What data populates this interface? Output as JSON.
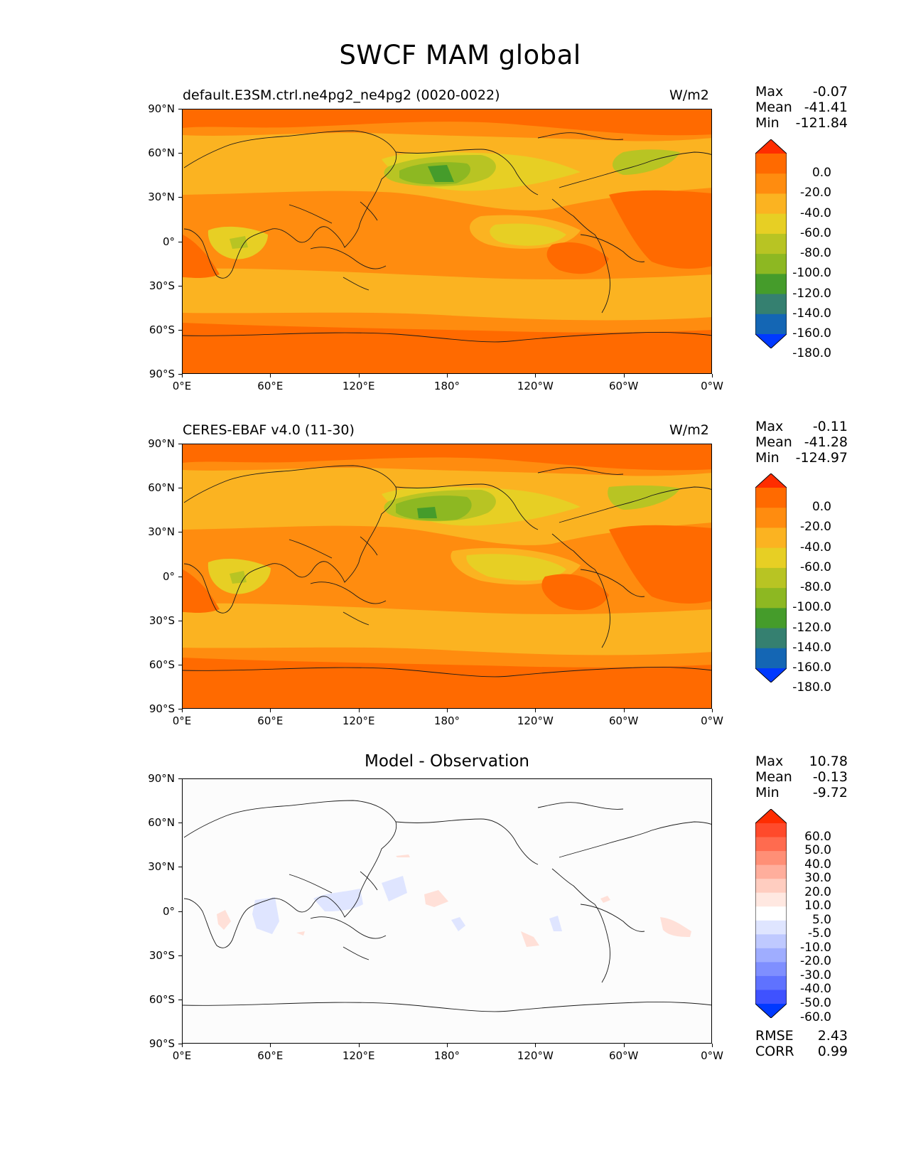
{
  "title": "SWCF MAM global",
  "colors": {
    "orange_dark": "#ff6a00",
    "orange": "#ff8c0f",
    "orange_light": "#fbb321",
    "yellow": "#e7cf24",
    "yellow_green": "#b8c423",
    "green_light": "#8db822",
    "green": "#459c2b",
    "teal": "#358070",
    "blue_mid": "#1466b4",
    "blue": "#0039ff",
    "red": "#ff2d00"
  },
  "panels": [
    {
      "label": "default.E3SM.ctrl.ne4pg2_ne4pg2 (0020-0022)",
      "units": "W/m2",
      "stats": [
        {
          "name": "Max",
          "value": "-0.07"
        },
        {
          "name": "Mean",
          "value": "-41.41"
        },
        {
          "name": "Min",
          "value": "-121.84"
        }
      ]
    },
    {
      "label": "CERES-EBAF v4.0 (11-30)",
      "units": "W/m2",
      "stats": [
        {
          "name": "Max",
          "value": "-0.11"
        },
        {
          "name": "Mean",
          "value": "-41.28"
        },
        {
          "name": "Min",
          "value": "-124.97"
        }
      ]
    },
    {
      "center_title": "Model - Observation",
      "stats": [
        {
          "name": "Max",
          "value": "10.78"
        },
        {
          "name": "Mean",
          "value": "-0.13"
        },
        {
          "name": "Min",
          "value": "-9.72"
        }
      ],
      "extra_stats": [
        {
          "name": "RMSE",
          "value": "2.43"
        },
        {
          "name": "CORR",
          "value": "0.99"
        }
      ]
    }
  ],
  "yticks": [
    "90°N",
    "60°N",
    "30°N",
    "0°",
    "30°S",
    "60°S",
    "90°S"
  ],
  "xticks": [
    "0°E",
    "60°E",
    "120°E",
    "180°",
    "120°W",
    "60°W",
    "0°W"
  ],
  "colorbar_abs": {
    "labels": [
      "0.0",
      "-20.0",
      "-40.0",
      "-60.0",
      "-80.0",
      "-100.0",
      "-120.0",
      "-140.0",
      "-160.0",
      "-180.0"
    ],
    "colors": [
      "#ff2d00",
      "#ff6a00",
      "#ff8c0f",
      "#fbb321",
      "#e7cf24",
      "#b8c423",
      "#8db822",
      "#459c2b",
      "#358070",
      "#1466b4",
      "#0039ff"
    ]
  },
  "colorbar_diff": {
    "labels": [
      "60.0",
      "50.0",
      "40.0",
      "30.0",
      "20.0",
      "10.0",
      "5.0",
      "-5.0",
      "-10.0",
      "-20.0",
      "-30.0",
      "-40.0",
      "-50.0",
      "-60.0"
    ],
    "colors": [
      "#ff2d00",
      "#ff4a2b",
      "#ff6b4f",
      "#ff8f76",
      "#ffae9c",
      "#ffcdc0",
      "#ffe8e1",
      "#ffffff",
      "#dfe5ff",
      "#bfc9ff",
      "#9fadff",
      "#7f8fff",
      "#5f72ff",
      "#3f52ff",
      "#0039ff"
    ]
  }
}
